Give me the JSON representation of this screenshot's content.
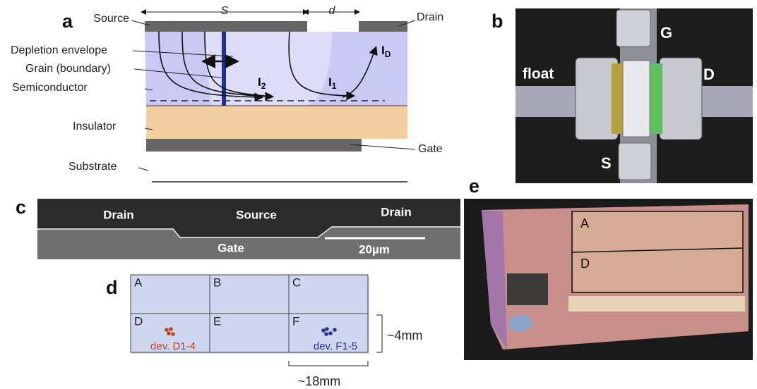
{
  "panels": {
    "a": {
      "label": "a",
      "source": "Source",
      "drain": "Drain",
      "depletion": "Depletion envelope",
      "grain": "Grain (boundary)",
      "semiconductor": "Semiconductor",
      "insulator": "Insulator",
      "gate": "Gate",
      "substrate": "Substrate",
      "s": "S",
      "d": "d",
      "i_d": "I",
      "i_d_sub": "D",
      "i_1": "I",
      "i_1_sub": "1",
      "i_2": "I",
      "i_2_sub": "2"
    },
    "b": {
      "label": "b",
      "g": "G",
      "d": "D",
      "s": "S",
      "float": "float"
    },
    "c": {
      "label": "c",
      "drain_left": "Drain",
      "source": "Source",
      "drain_right": "Drain",
      "gate": "Gate",
      "scale": "20µm"
    },
    "d": {
      "label": "d",
      "cells": [
        "A",
        "B",
        "C",
        "D",
        "E",
        "F"
      ],
      "dev_d": "dev. D1-4",
      "dev_f": "dev. F1-5",
      "height": "~4mm",
      "width": "~18mm"
    },
    "e": {
      "label": "e",
      "region_a": "A",
      "region_d": "D"
    }
  }
}
